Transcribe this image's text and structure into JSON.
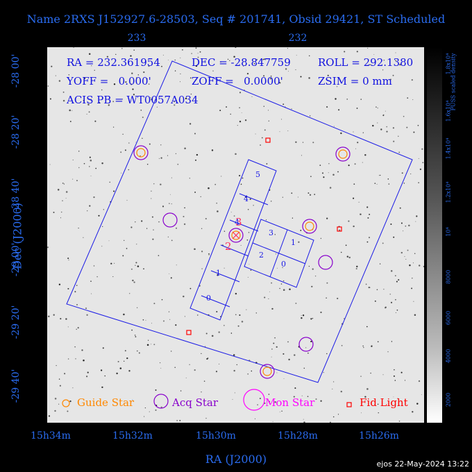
{
  "title": "Name 2RXS J152927.6-28503, Seq # 201741, Obsid 29421, ST Scheduled",
  "top_ticks": [
    "233",
    "232"
  ],
  "bottom_ticks": [
    "15h34m",
    "15h32m",
    "15h30m",
    "15h28m",
    "15h26m"
  ],
  "left_ticks": [
    "-28 00'",
    "-28 20'",
    "-28 40'",
    "-29 00'",
    "-29 20'",
    "-29 40'"
  ],
  "xlabel": "RA (J2000)",
  "ylabel": "Dec (J2000)",
  "info": {
    "ra": "RA = 232.361954",
    "dec": "DEC = -28.847759",
    "roll": "ROLL = 292.1380",
    "yoff": "YOFF =   0.000'",
    "zoff": "ZOFF =   0.0000'",
    "zsim": "ZSIM = 0 mm",
    "acis": "ACIS PB = WT0057A034"
  },
  "chips": [
    "0",
    "1",
    "2",
    "3",
    "4",
    "5",
    "0",
    "1",
    "2",
    "3"
  ],
  "chip_markers": [
    "2",
    "3"
  ],
  "legend": {
    "guide": "Guide Star",
    "acq": "Acq Star",
    "mon": "Mon Star",
    "fid": "Fid Light"
  },
  "colorbar": {
    "title_lines": [
      "PUSS scaled density"
    ],
    "labels": [
      "1.8x10⁴",
      "1.6x10⁴",
      "1.4x10⁴",
      "1.2x10⁴",
      "10⁴",
      "8000",
      "6000",
      "4000",
      "2000"
    ]
  },
  "footer": "ejos 22-May-2024 13:22",
  "colors": {
    "axis": "#2a6cf0",
    "field": "#1a1ae6",
    "guide": "#ff8800",
    "acq": "#8800cc",
    "mon": "#ff00ff",
    "fid": "#ff0000"
  }
}
